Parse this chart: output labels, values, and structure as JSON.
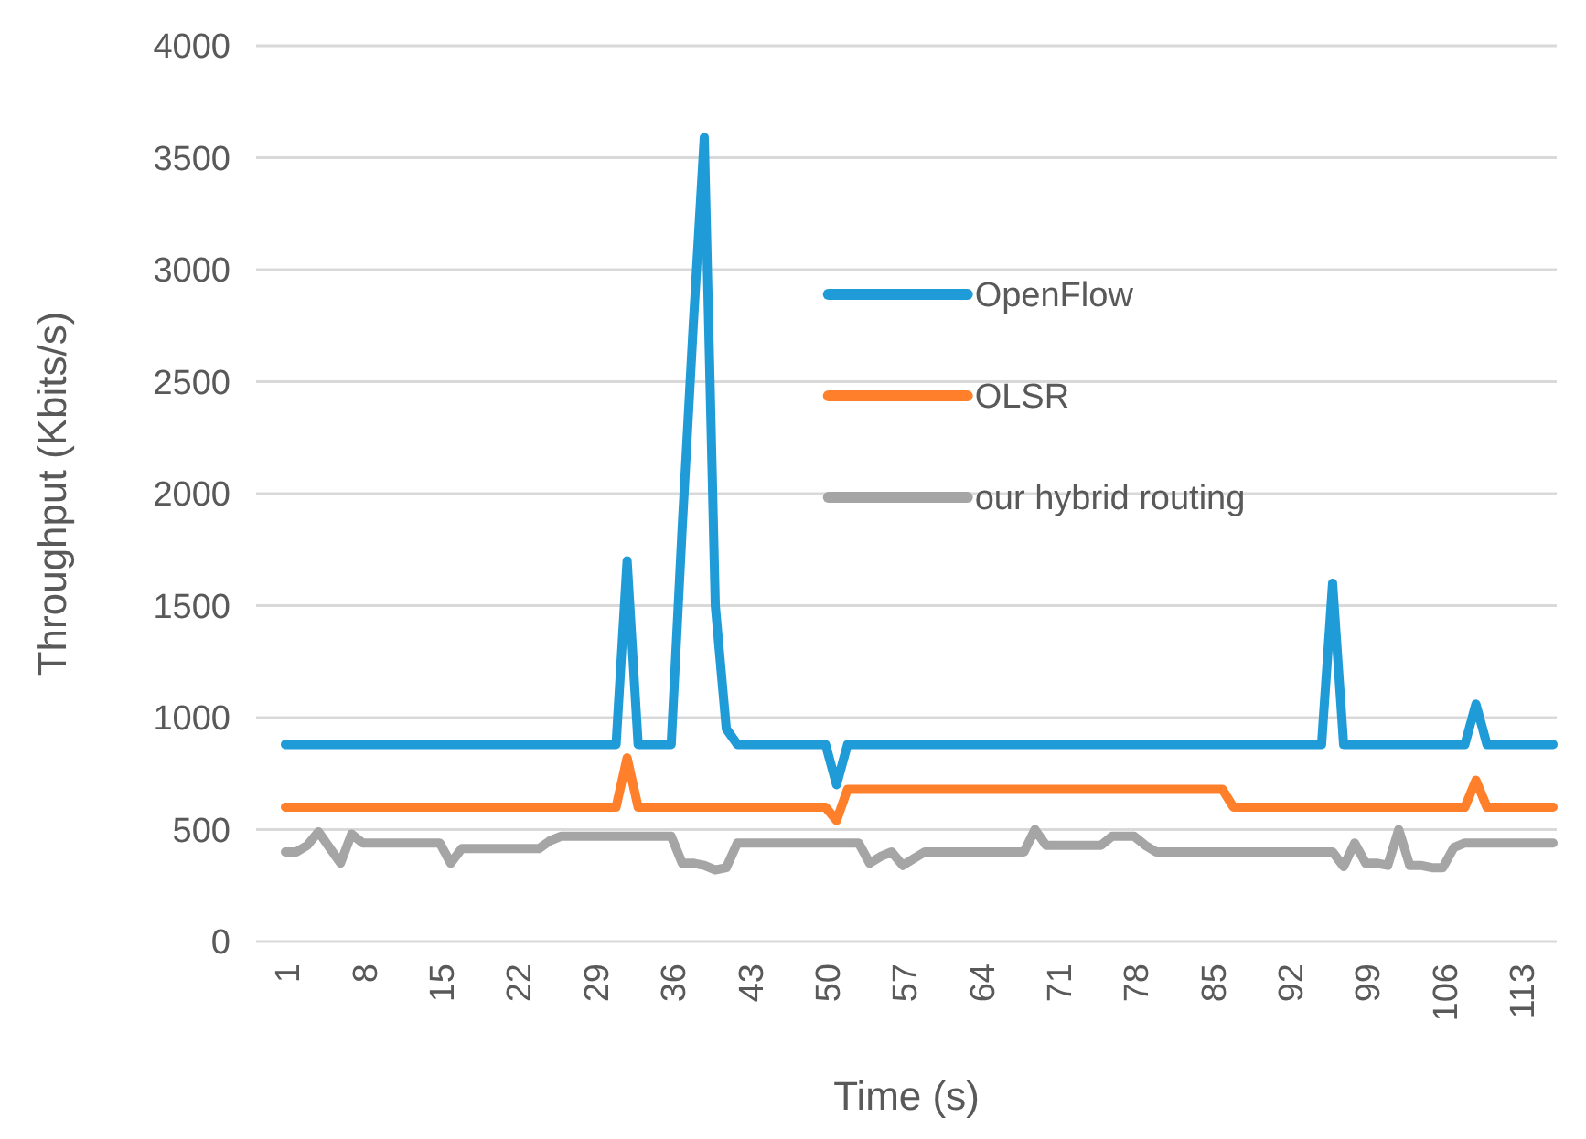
{
  "chart_data": {
    "type": "line",
    "xlabel": "Time (s)",
    "ylabel": "Throughput (Kbits/s)",
    "categories": [
      "1",
      null,
      null,
      null,
      null,
      null,
      null,
      "8",
      null,
      null,
      null,
      null,
      null,
      null,
      "15",
      null,
      null,
      null,
      null,
      null,
      null,
      "22",
      null,
      null,
      null,
      null,
      null,
      null,
      "29",
      null,
      null,
      null,
      null,
      null,
      null,
      "36",
      null,
      null,
      null,
      null,
      null,
      null,
      "43",
      null,
      null,
      null,
      null,
      null,
      null,
      "50",
      null,
      null,
      null,
      null,
      null,
      null,
      "57",
      null,
      null,
      null,
      null,
      null,
      null,
      "64",
      null,
      null,
      null,
      null,
      null,
      null,
      "71",
      null,
      null,
      null,
      null,
      null,
      null,
      "78",
      null,
      null,
      null,
      null,
      null,
      null,
      "85",
      null,
      null,
      null,
      null,
      null,
      null,
      "92",
      null,
      null,
      null,
      null,
      null,
      null,
      "99",
      null,
      null,
      null,
      null,
      null,
      null,
      "106",
      null,
      null,
      null,
      null,
      null,
      null,
      "113",
      null,
      null,
      null
    ],
    "series": [
      {
        "name": "OpenFlow",
        "color": "#1f9bd7",
        "values": [
          880,
          880,
          880,
          880,
          880,
          880,
          880,
          880,
          880,
          880,
          880,
          880,
          880,
          880,
          880,
          880,
          880,
          880,
          880,
          880,
          880,
          880,
          880,
          880,
          880,
          880,
          880,
          880,
          880,
          880,
          880,
          1700,
          880,
          880,
          880,
          880,
          1850,
          2750,
          3590,
          1500,
          950,
          880,
          880,
          880,
          880,
          880,
          880,
          880,
          880,
          880,
          700,
          880,
          880,
          880,
          880,
          880,
          880,
          880,
          880,
          880,
          880,
          880,
          880,
          880,
          880,
          880,
          880,
          880,
          880,
          880,
          880,
          880,
          880,
          880,
          880,
          880,
          880,
          880,
          880,
          880,
          880,
          880,
          880,
          880,
          880,
          880,
          880,
          880,
          880,
          880,
          880,
          880,
          880,
          880,
          880,
          1600,
          880,
          880,
          880,
          880,
          880,
          880,
          880,
          880,
          880,
          880,
          880,
          880,
          1060,
          880,
          880,
          880,
          880,
          880,
          880,
          880
        ]
      },
      {
        "name": "OLSR",
        "color": "#ff7f2a",
        "values": [
          600,
          600,
          600,
          600,
          600,
          600,
          600,
          600,
          600,
          600,
          600,
          600,
          600,
          600,
          600,
          600,
          600,
          600,
          600,
          600,
          600,
          600,
          600,
          600,
          600,
          600,
          600,
          600,
          600,
          600,
          600,
          820,
          600,
          600,
          600,
          600,
          600,
          600,
          600,
          600,
          600,
          600,
          600,
          600,
          600,
          600,
          600,
          600,
          600,
          600,
          540,
          680,
          680,
          680,
          680,
          680,
          680,
          680,
          680,
          680,
          680,
          680,
          680,
          680,
          680,
          680,
          680,
          680,
          680,
          680,
          680,
          680,
          680,
          680,
          680,
          680,
          680,
          680,
          680,
          680,
          680,
          680,
          680,
          680,
          680,
          680,
          600,
          600,
          600,
          600,
          600,
          600,
          600,
          600,
          600,
          600,
          600,
          600,
          600,
          600,
          600,
          600,
          600,
          600,
          600,
          600,
          600,
          600,
          720,
          600,
          600,
          600,
          600,
          600,
          600,
          600
        ]
      },
      {
        "name": "our hybrid routing",
        "color": "#a5a5a5",
        "values": [
          400,
          400,
          430,
          490,
          420,
          350,
          480,
          440,
          440,
          440,
          440,
          440,
          440,
          440,
          440,
          350,
          415,
          415,
          415,
          415,
          415,
          415,
          415,
          415,
          450,
          470,
          470,
          470,
          470,
          470,
          470,
          470,
          470,
          470,
          470,
          470,
          350,
          350,
          340,
          320,
          330,
          440,
          440,
          440,
          440,
          440,
          440,
          440,
          440,
          440,
          440,
          440,
          440,
          350,
          380,
          400,
          340,
          370,
          400,
          400,
          400,
          400,
          400,
          400,
          400,
          400,
          400,
          400,
          500,
          430,
          430,
          430,
          430,
          430,
          430,
          470,
          470,
          470,
          430,
          400,
          400,
          400,
          400,
          400,
          400,
          400,
          400,
          400,
          400,
          400,
          400,
          400,
          400,
          400,
          400,
          400,
          335,
          440,
          350,
          350,
          340,
          500,
          340,
          340,
          330,
          330,
          420,
          440,
          440,
          440,
          440,
          440,
          440,
          440,
          440,
          440
        ]
      }
    ],
    "ylim": [
      0,
      4000
    ],
    "yticks": [
      0,
      500,
      1000,
      1500,
      2000,
      2500,
      3000,
      3500,
      4000
    ],
    "grid": "y",
    "legend": "top right",
    "marker": "none",
    "line_style": "solid"
  }
}
